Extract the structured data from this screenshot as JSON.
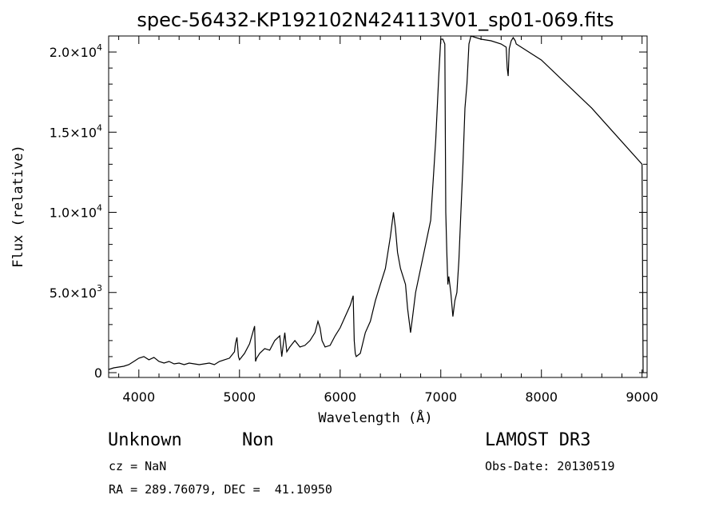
{
  "chart_data": {
    "type": "line",
    "title": "spec-56432-KP192102N424113V01_sp01-069.fits",
    "xlabel": "Wavelength (Å)",
    "ylabel": "Flux (relative)",
    "xlim": [
      3700,
      9050
    ],
    "ylim": [
      -300,
      21000
    ],
    "x_ticks": [
      4000,
      5000,
      6000,
      7000,
      8000,
      9000
    ],
    "x_tick_labels": [
      "4000",
      "5000",
      "6000",
      "7000",
      "8000",
      "9000"
    ],
    "y_ticks": [
      0,
      5000,
      10000,
      15000,
      20000
    ],
    "y_tick_labels": [
      {
        "base": "0",
        "exp": ""
      },
      {
        "base": "5.0×10",
        "exp": "3"
      },
      {
        "base": "1.0×10",
        "exp": "4"
      },
      {
        "base": "1.5×10",
        "exp": "4"
      },
      {
        "base": "2.0×10",
        "exp": "4"
      }
    ],
    "grid": false,
    "series": [
      {
        "x": [
          3700,
          3750,
          3800,
          3850,
          3900,
          3950,
          4000,
          4050,
          4100,
          4150,
          4200,
          4250,
          4300,
          4350,
          4400,
          4450,
          4500,
          4550,
          4600,
          4650,
          4700,
          4750,
          4800,
          4850,
          4900,
          4950,
          4960,
          4975,
          4990,
          5000,
          5050,
          5100,
          5150,
          5160,
          5170,
          5180,
          5200,
          5250,
          5300,
          5350,
          5400,
          5420,
          5440,
          5450,
          5470,
          5500,
          5550,
          5600,
          5650,
          5700,
          5750,
          5780,
          5800,
          5820,
          5850,
          5900,
          5950,
          6000,
          6050,
          6100,
          6130,
          6140,
          6150,
          6160,
          6200,
          6250,
          6300,
          6350,
          6400,
          6450,
          6500,
          6530,
          6550,
          6570,
          6600,
          6650,
          6670,
          6690,
          6700,
          6720,
          6750,
          6800,
          6850,
          6900,
          6950,
          6980,
          7000,
          7020,
          7040,
          7050,
          7060,
          7070,
          7080,
          7100,
          7120,
          7140,
          7160,
          7180,
          7200,
          7220,
          7240,
          7260,
          7280,
          7300,
          7400,
          7500,
          7600,
          7650,
          7660,
          7670,
          7680,
          7700,
          7720,
          7730,
          7740,
          7750,
          8000,
          8500,
          9000,
          9010
        ],
        "y": [
          200,
          300,
          350,
          400,
          500,
          700,
          900,
          1000,
          800,
          950,
          700,
          600,
          700,
          550,
          600,
          500,
          600,
          550,
          500,
          550,
          600,
          500,
          700,
          800,
          900,
          1300,
          1800,
          2200,
          1000,
          800,
          1200,
          1800,
          2900,
          700,
          900,
          1000,
          1200,
          1500,
          1400,
          2000,
          2300,
          1000,
          2000,
          2500,
          1300,
          1600,
          2000,
          1600,
          1700,
          2000,
          2500,
          3200,
          2800,
          2000,
          1600,
          1700,
          2300,
          2800,
          3500,
          4200,
          4800,
          2000,
          1200,
          1000,
          1200,
          2500,
          3200,
          4500,
          5500,
          6500,
          8500,
          10000,
          9000,
          7500,
          6500,
          5500,
          4000,
          3000,
          2500,
          3500,
          5000,
          6500,
          8000,
          9500,
          14500,
          18500,
          20800,
          20800,
          20500,
          10000,
          7500,
          5500,
          6000,
          5000,
          3500,
          4500,
          5000,
          7000,
          10000,
          13000,
          16500,
          18000,
          20500,
          21000,
          20800,
          20700,
          20500,
          20300,
          19000,
          18500,
          20200,
          20700,
          20900,
          20800,
          20700,
          20500,
          19500,
          16500,
          13000,
          0
        ]
      }
    ]
  },
  "info": {
    "object_class": "Unknown",
    "object_subclass": "Non",
    "survey": "LAMOST DR3",
    "cz": "cz = NaN",
    "obs_date": "Obs-Date: 20130519",
    "coords": "RA = 289.76079, DEC =  41.10950"
  }
}
